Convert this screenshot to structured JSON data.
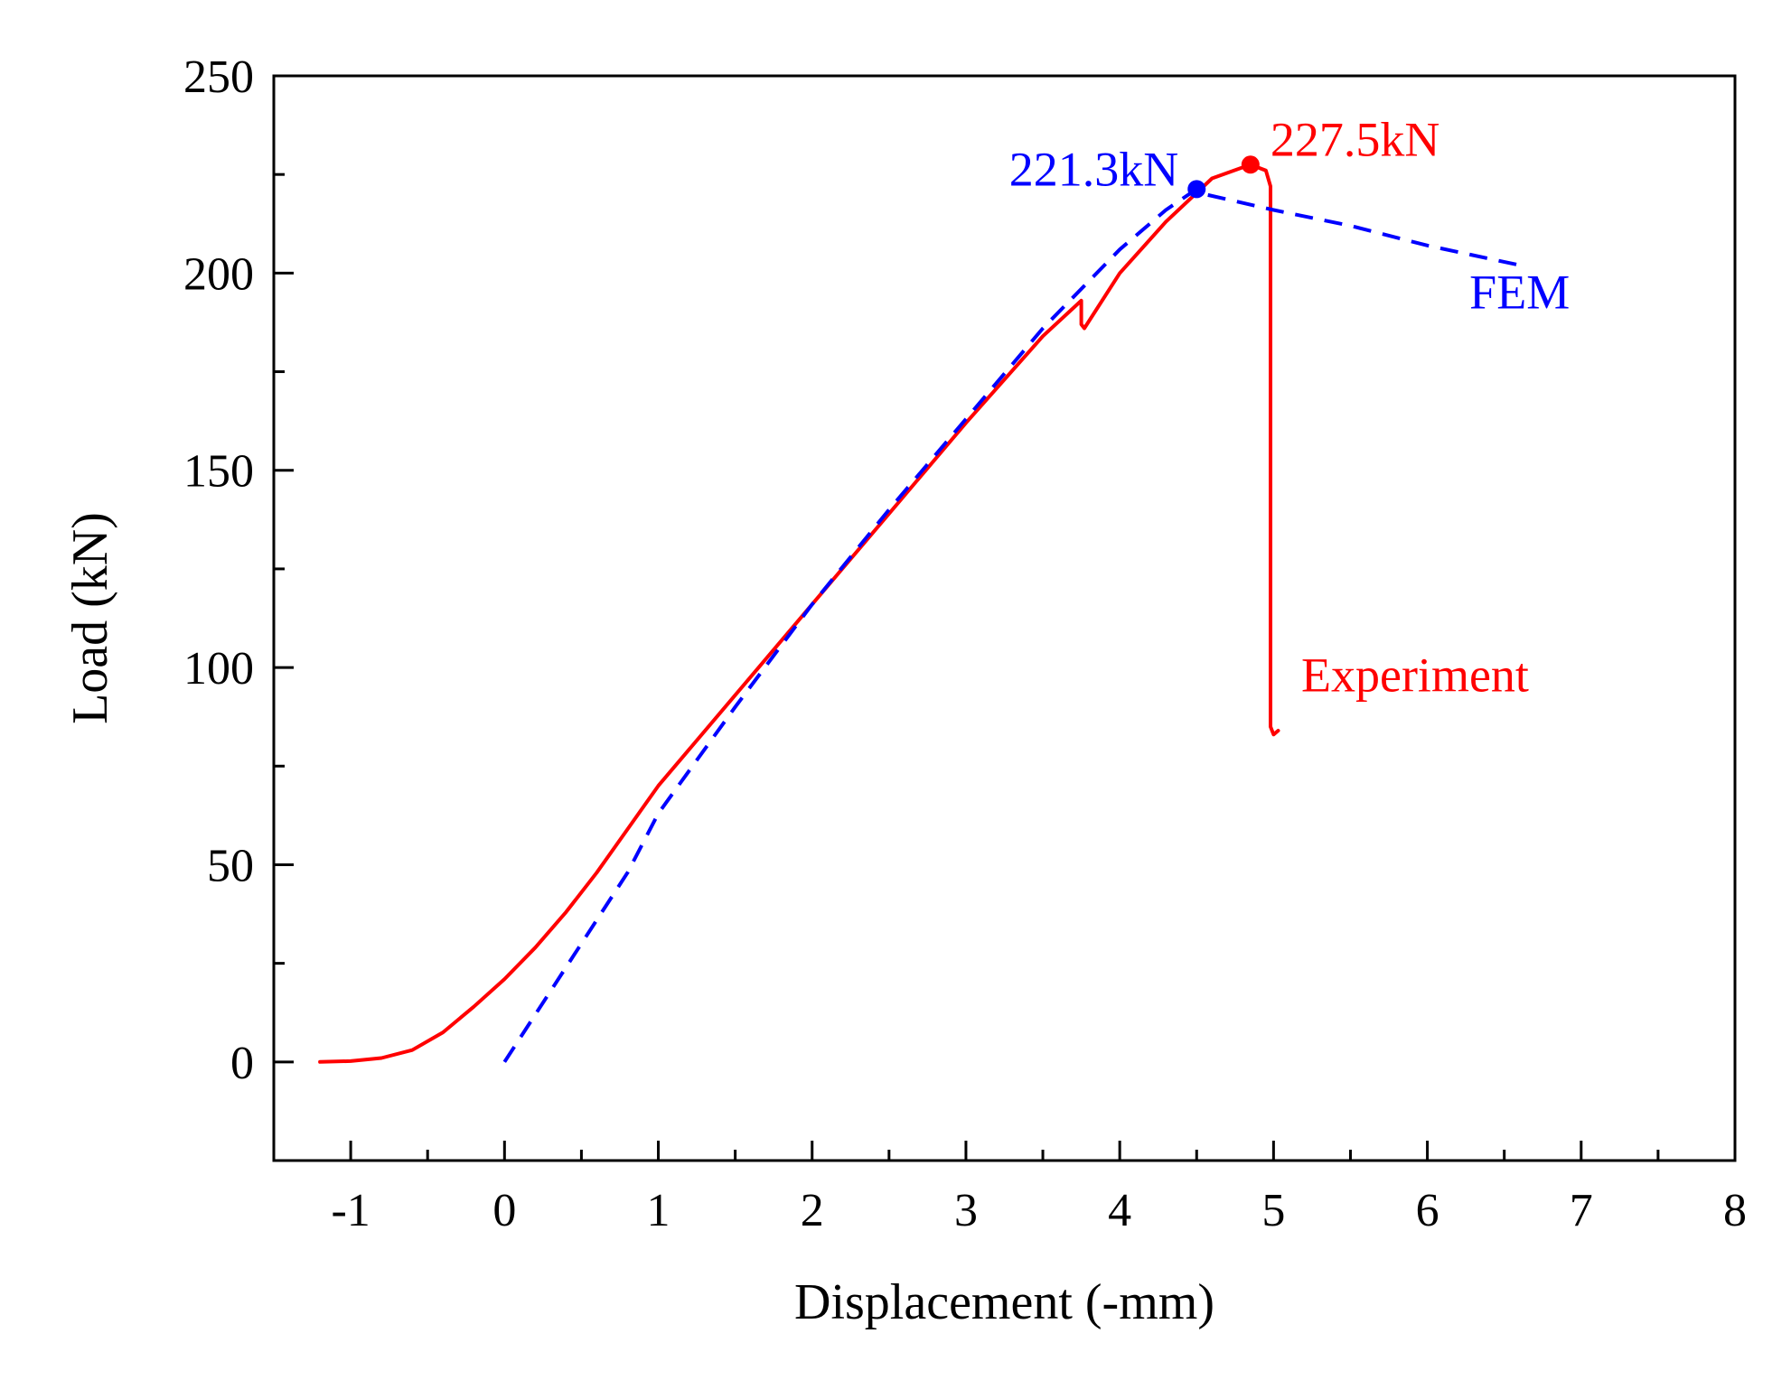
{
  "chart_data": {
    "type": "line",
    "title": "",
    "xlabel": "Displacement (-mm)",
    "ylabel": "Load (kN)",
    "xlim": [
      -1.5,
      8
    ],
    "ylim": [
      -25,
      250
    ],
    "xticks": [
      -1,
      0,
      1,
      2,
      3,
      4,
      5,
      6,
      7,
      8
    ],
    "xtick_labels": [
      "-1",
      "0",
      "1",
      "2",
      "3",
      "4",
      "5",
      "6",
      "7",
      "8"
    ],
    "yticks": [
      0,
      50,
      100,
      150,
      200,
      250
    ],
    "ytick_labels": [
      "0",
      "50",
      "100",
      "150",
      "200",
      "250"
    ],
    "grid": false,
    "series": [
      {
        "name": "Experiment",
        "color": "#ff0000",
        "style": "solid",
        "x": [
          -1.2,
          -1.0,
          -0.8,
          -0.6,
          -0.4,
          -0.2,
          0.0,
          0.2,
          0.4,
          0.6,
          0.8,
          1.0,
          1.5,
          2.0,
          2.5,
          3.0,
          3.5,
          3.75,
          3.75,
          3.77,
          4.0,
          4.3,
          4.6,
          4.85,
          4.95,
          4.98,
          4.98,
          5.0,
          5.03
        ],
        "y": [
          0,
          0.2,
          1.0,
          3.0,
          7.5,
          14,
          21,
          29,
          38,
          48,
          59,
          70,
          93,
          116,
          139,
          162,
          184,
          193,
          187,
          186,
          200,
          213,
          224,
          227.5,
          226,
          222,
          85,
          83,
          84
        ]
      },
      {
        "name": "FEM",
        "color": "#0000ff",
        "style": "dashed",
        "x": [
          0.0,
          0.4,
          0.8,
          1.0,
          1.5,
          2.0,
          2.5,
          3.0,
          3.5,
          4.0,
          4.3,
          4.5,
          4.55,
          5.0,
          5.5,
          6.0,
          6.6
        ],
        "y": [
          0,
          24,
          48,
          63,
          90,
          116,
          140,
          163,
          186,
          206,
          216,
          221.3,
          220,
          216,
          212,
          207,
          202
        ]
      }
    ],
    "markers": [
      {
        "series": "FEM",
        "x": 4.5,
        "y": 221.3,
        "color": "#0000ff",
        "label": "221.3kN"
      },
      {
        "series": "Experiment",
        "x": 4.85,
        "y": 227.5,
        "color": "#ff0000",
        "label": "227.5kN"
      }
    ],
    "annotations": [
      {
        "text": "FEM",
        "x": 6.6,
        "y": 191,
        "color": "#0000ff"
      },
      {
        "text": "Experiment",
        "x": 5.18,
        "y": 94,
        "color": "#ff0000"
      }
    ]
  }
}
